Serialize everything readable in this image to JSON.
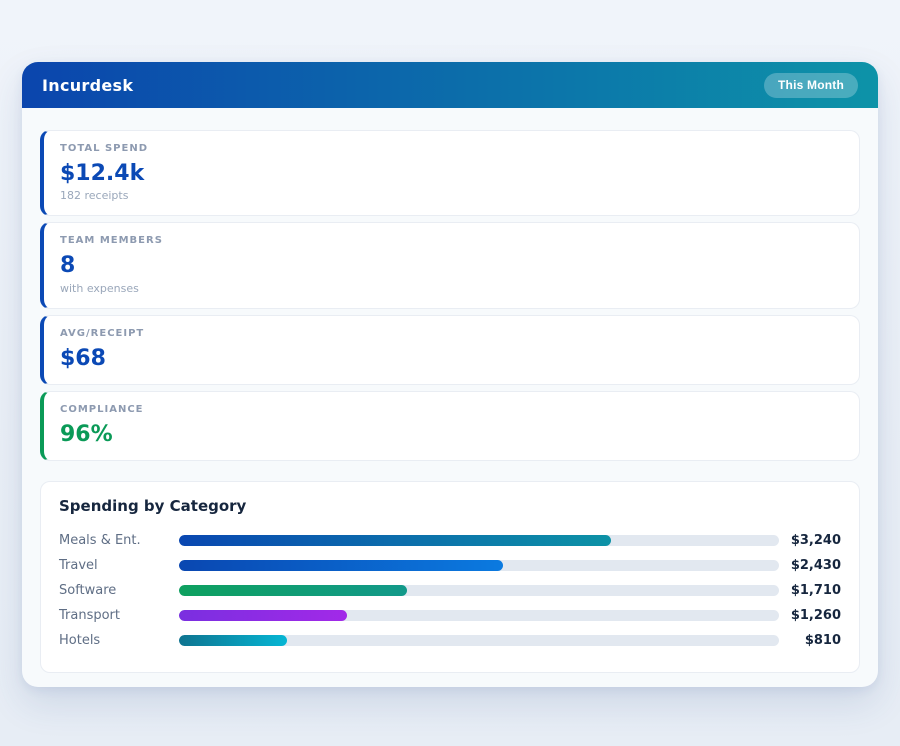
{
  "header": {
    "title": "Incurdesk",
    "badge_label": "This Month"
  },
  "stats": [
    {
      "label": "TOTAL SPEND",
      "value": "$12.4k",
      "sub": "182 receipts",
      "accent": "#0b49b5"
    },
    {
      "label": "TEAM MEMBERS",
      "value": "8",
      "sub": "with expenses",
      "accent": "#0b49b5"
    },
    {
      "label": "AVG/RECEIPT",
      "value": "$68",
      "sub": "",
      "accent": "#0b49b5"
    },
    {
      "label": "COMPLIANCE",
      "value": "96%",
      "sub": "",
      "accent": "#0a9a57"
    }
  ],
  "chart": {
    "title": "Spending by Category"
  },
  "chart_data": {
    "type": "bar",
    "orientation": "horizontal",
    "title": "Spending by Category",
    "categories": [
      "Meals & Ent.",
      "Travel",
      "Software",
      "Transport",
      "Hotels"
    ],
    "values": [
      3240,
      2430,
      1710,
      1260,
      810
    ],
    "value_labels": [
      "$3,240",
      "$2,430",
      "$1,710",
      "$1,260",
      "$810"
    ],
    "xlim": [
      0,
      4500
    ],
    "grid": false,
    "legend": false,
    "track_color": "#e2e8f0",
    "bar_gradients": [
      [
        "#0a47b1",
        "#0d92a6"
      ],
      [
        "#0a47b1",
        "#0b7ae0"
      ],
      [
        "#0ea05f",
        "#12998a"
      ],
      [
        "#7a2fe0",
        "#a229e8"
      ],
      [
        "#0e7490",
        "#06b6d4"
      ]
    ]
  },
  "colors": {
    "header_gradient_from": "#0b45ad",
    "header_gradient_to": "#0d93a8",
    "badge_background": "rgba(255,255,255,0.25)",
    "accent_blue": "#0b49b5",
    "accent_green": "#0a9a57"
  }
}
